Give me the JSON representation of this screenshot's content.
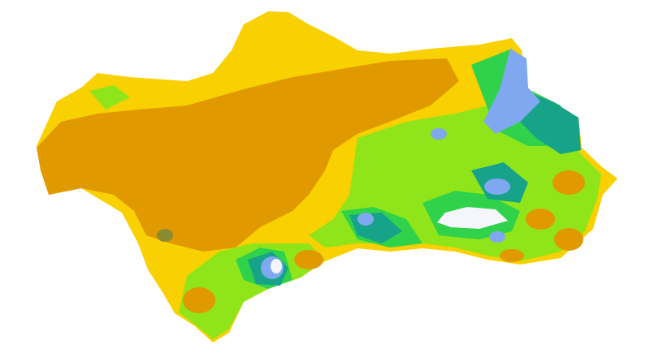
{
  "map": {
    "background": "#ffffff",
    "classes": [
      {
        "key": "yellow",
        "color": "#f9d000"
      },
      {
        "key": "dark-orange",
        "color": "#e09a00"
      },
      {
        "key": "light-green",
        "color": "#8fe51a"
      },
      {
        "key": "green",
        "color": "#2fd24a"
      },
      {
        "key": "teal",
        "color": "#16a38a"
      },
      {
        "key": "blue",
        "color": "#7fa8f0"
      },
      {
        "key": "white",
        "color": "#f4f6fb"
      },
      {
        "key": "olive",
        "color": "#8a8a30"
      }
    ]
  }
}
